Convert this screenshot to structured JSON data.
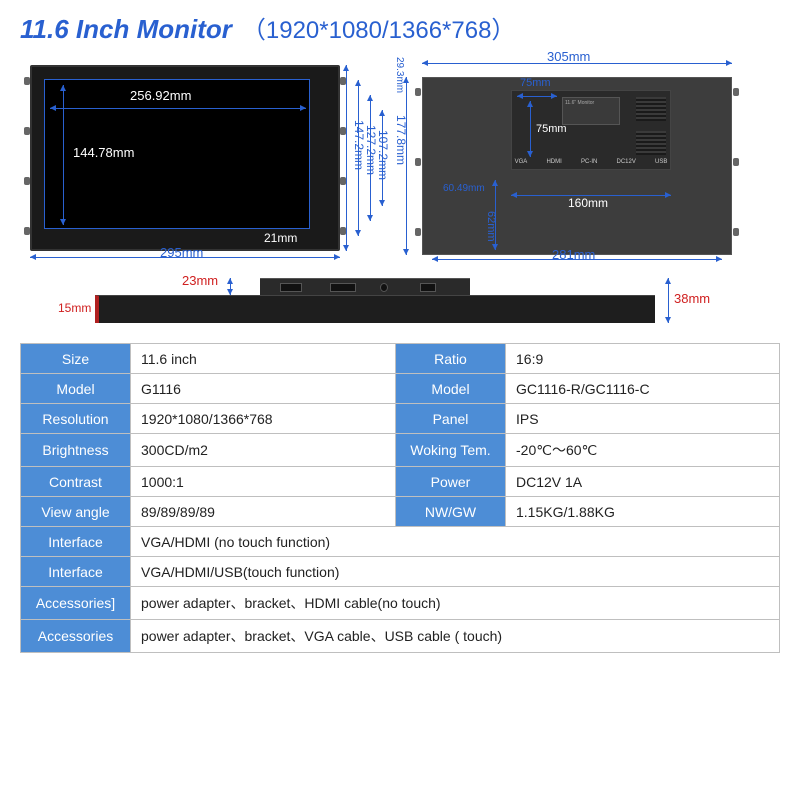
{
  "header": {
    "title": "11.6 Inch Monitor",
    "subtitle": "（1920*1080/1366*768）"
  },
  "colors": {
    "accent": "#2960d0",
    "table_header": "#4d8dd6",
    "border": "#bfbfbf",
    "body_bg": "#ffffff",
    "diagram_dark": "#1a1a1a",
    "diagram_back": "#3d3d3d",
    "red_accent": "#b02020"
  },
  "front_view": {
    "screen_width": "256.92mm",
    "screen_height": "144.78mm",
    "frame_bottom_inset": "21mm",
    "outer_width": "295mm",
    "height_full": "177.8mm",
    "height_mid1": "147.2mm",
    "height_mid2": "127.2mm",
    "height_mid3": "107.2mm",
    "top_offset": "29.3mm"
  },
  "back_view": {
    "outer_width": "305mm",
    "box_width": "75mm",
    "box_height": "75mm",
    "bottom_offset": "60.49mm",
    "bottom_height": "62mm",
    "center_width": "160mm",
    "base_width": "281mm",
    "plate_title": "11.6\" Monitor",
    "ports": [
      "VGA",
      "HDMI",
      "PC-IN",
      "DC12V",
      "USB"
    ]
  },
  "side_view": {
    "bump_height": "23mm",
    "edge_height": "15mm",
    "full_height": "38mm"
  },
  "specs": {
    "rows_pair": [
      {
        "l1": "Size",
        "v1": "11.6 inch",
        "l2": "Ratio",
        "v2": "16:9"
      },
      {
        "l1": "Model",
        "v1": "G1116",
        "l2": "Model",
        "v2": "GC1116-R/GC1116-C"
      },
      {
        "l1": "Resolution",
        "v1": "1920*1080/1366*768",
        "l2": "Panel",
        "v2": "IPS"
      },
      {
        "l1": "Brightness",
        "v1": "300CD/m2",
        "l2": "Woking Tem.",
        "v2": "-20℃～60℃"
      },
      {
        "l1": "Contrast",
        "v1": "1000:1",
        "l2": "Power",
        "v2": "DC12V   1A"
      },
      {
        "l1": "View angle",
        "v1": "89/89/89/89",
        "l2": "NW/GW",
        "v2": "1.15KG/1.88KG"
      }
    ],
    "rows_full": [
      {
        "l": "Interface",
        "v": "VGA/HDMI (no touch function)"
      },
      {
        "l": "Interface",
        "v": "VGA/HDMI/USB(touch function)"
      },
      {
        "l": "Accessories]",
        "v": "power adapter、bracket、HDMI   cable(no touch)"
      },
      {
        "l": "Accessories",
        "v": "power adapter、bracket、VGA cable、USB cable ( touch)"
      }
    ]
  }
}
